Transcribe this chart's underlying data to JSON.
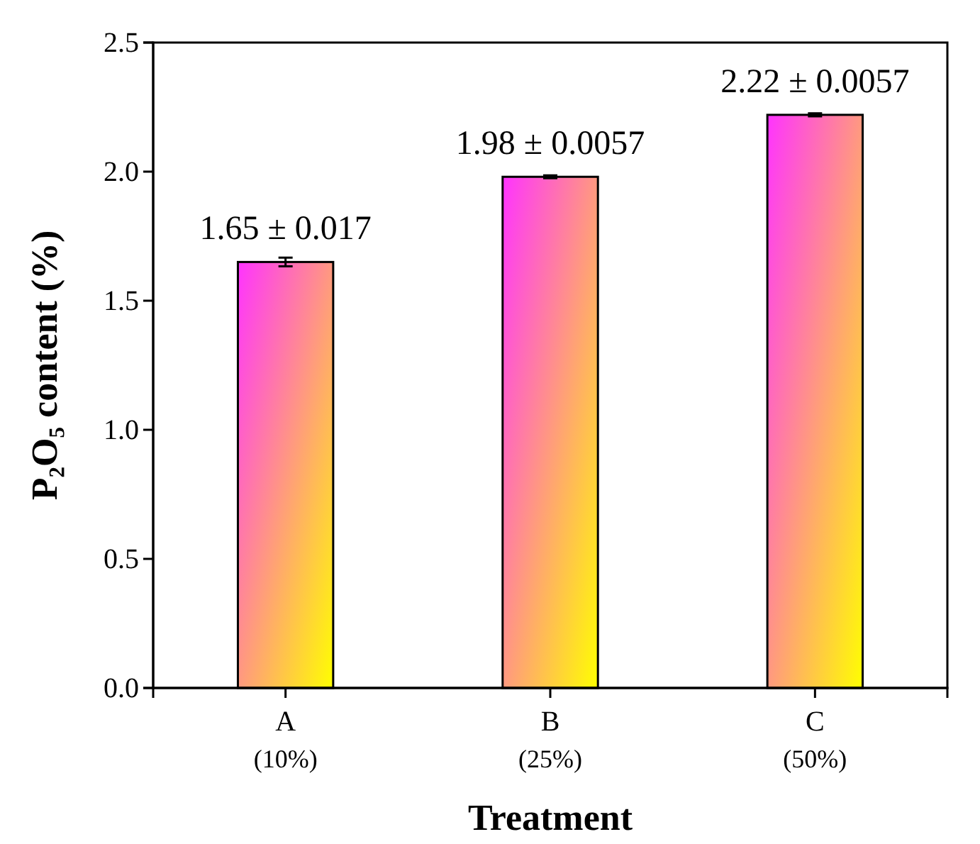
{
  "chart_data": {
    "type": "bar",
    "xlabel": "Treatment",
    "ylabel": "P₂O₅ content (%)",
    "categories": [
      "A\n(10%)",
      "B\n(25%)",
      "C\n(50%)"
    ],
    "values": [
      1.65,
      1.98,
      2.22
    ],
    "errors": [
      0.017,
      0.0057,
      0.0057
    ],
    "value_labels": [
      "1.65 ± 0.017",
      "1.98 ± 0.0057",
      "2.22 ± 0.0057"
    ],
    "color": "#ff33ff",
    "ylim": [
      0,
      2.5
    ],
    "yticks": [
      {
        "value": 0,
        "label": "0.0"
      },
      0.5,
      {
        "value": 1,
        "label": "1.0"
      },
      1.5,
      {
        "value": 2,
        "label": "2.0"
      },
      2.5
    ],
    "grid": false
  }
}
